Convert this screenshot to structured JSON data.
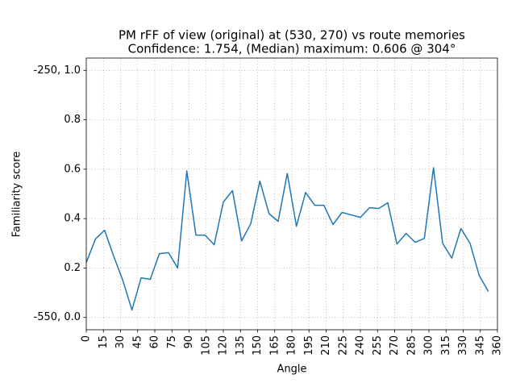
{
  "chart_data": {
    "type": "line",
    "title": "PM rFF of view (original) at (530, 270) vs route memories",
    "subtitle": "Confidence: 1.754, (Median) maximum: 0.606 @ 304°",
    "xlabel": "Angle",
    "ylabel": "Familiarity score",
    "x": [
      0,
      8,
      16,
      24,
      32,
      40,
      48,
      56,
      64,
      72,
      80,
      88,
      96,
      104,
      112,
      120,
      128,
      136,
      144,
      152,
      160,
      168,
      176,
      184,
      192,
      200,
      208,
      216,
      224,
      232,
      240,
      248,
      256,
      264,
      272,
      280,
      288,
      296,
      304,
      312,
      320,
      328,
      336,
      344,
      352
    ],
    "series": [
      {
        "name": "Familiarity score",
        "color": "#1f77b4",
        "values": [
          0.222,
          0.317,
          0.353,
          0.248,
          0.15,
          0.03,
          0.16,
          0.154,
          0.258,
          0.262,
          0.2,
          0.593,
          0.333,
          0.333,
          0.294,
          0.467,
          0.513,
          0.31,
          0.379,
          0.552,
          0.42,
          0.389,
          0.583,
          0.369,
          0.506,
          0.454,
          0.454,
          0.376,
          0.425,
          0.415,
          0.405,
          0.444,
          0.441,
          0.464,
          0.297,
          0.34,
          0.304,
          0.32,
          0.606,
          0.3,
          0.24,
          0.36,
          0.3,
          0.17,
          0.105
        ]
      }
    ],
    "xlim": [
      0,
      360
    ],
    "xticks": [
      0,
      15,
      30,
      45,
      60,
      75,
      90,
      105,
      120,
      135,
      150,
      165,
      180,
      195,
      210,
      225,
      240,
      255,
      270,
      285,
      300,
      315,
      330,
      345,
      360
    ],
    "ylim": [
      -0.05,
      1.05
    ],
    "yticks": [
      {
        "value": 0,
        "label": "-550, 0.0"
      },
      0.2,
      0.4,
      0.6,
      0.8,
      {
        "value": 1,
        "label": "-250, 1.0"
      }
    ],
    "grid": true
  }
}
